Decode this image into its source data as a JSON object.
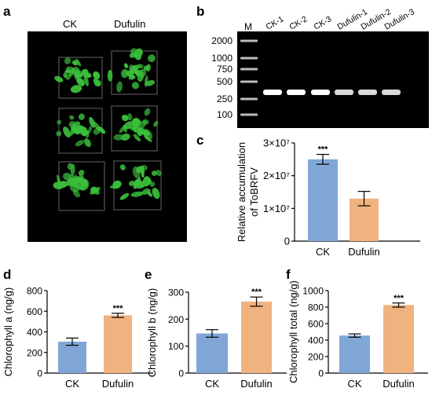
{
  "panels": {
    "a": {
      "letter": "a",
      "labels": [
        "CK",
        "Dufulin"
      ]
    },
    "b": {
      "letter": "b",
      "marker_label": "M",
      "marker_sizes": [
        "2000",
        "1000",
        "750",
        "500",
        "250",
        "100"
      ],
      "lanes": [
        "CK-1",
        "CK-2",
        "CK-3",
        "Dufulin-1",
        "Dufulin-2",
        "Dufulin-3"
      ]
    },
    "c": {
      "letter": "c"
    },
    "d": {
      "letter": "d"
    },
    "e": {
      "letter": "e"
    },
    "f": {
      "letter": "f"
    }
  },
  "colors": {
    "ck": "#7fa6d6",
    "dufulin": "#f0b27f",
    "plant_bg": "#000000",
    "leaf": "#3bbf3b",
    "gel_bg": "#000000"
  },
  "chart_data": [
    {
      "panel": "c",
      "type": "bar",
      "categories": [
        "CK",
        "Dufulin"
      ],
      "values": [
        25000000,
        13000000
      ],
      "errors": [
        1500000,
        2200000
      ],
      "significance": [
        "***",
        ""
      ],
      "ylabel": "Relative accumulation of ToBRFV",
      "ylim": [
        0,
        30000000
      ],
      "yticks": [
        0,
        10000000,
        20000000,
        30000000
      ],
      "ytick_labels": [
        "0",
        "1×10⁷",
        "2×10⁷",
        "3×10⁷"
      ]
    },
    {
      "panel": "d",
      "type": "bar",
      "categories": [
        "CK",
        "Dufulin"
      ],
      "values": [
        305,
        560
      ],
      "errors": [
        35,
        20
      ],
      "significance": [
        "",
        "***"
      ],
      "ylabel": "Chlorophyll a (ng/g)",
      "ylim": [
        0,
        800
      ],
      "yticks": [
        0,
        200,
        400,
        600,
        800
      ],
      "ytick_labels": [
        "0",
        "200",
        "400",
        "600",
        "800"
      ]
    },
    {
      "panel": "e",
      "type": "bar",
      "categories": [
        "CK",
        "Dufulin"
      ],
      "values": [
        147,
        265
      ],
      "errors": [
        14,
        17
      ],
      "significance": [
        "",
        "***"
      ],
      "ylabel": "Chlorophyll b (ng/g)",
      "ylim": [
        0,
        300
      ],
      "yticks": [
        0,
        100,
        200,
        300
      ],
      "ytick_labels": [
        "0",
        "100",
        "200",
        "300"
      ]
    },
    {
      "panel": "f",
      "type": "bar",
      "categories": [
        "CK",
        "Dufulin"
      ],
      "values": [
        455,
        825
      ],
      "errors": [
        20,
        25
      ],
      "significance": [
        "",
        "***"
      ],
      "ylabel": "Chlorophyll total (ng/g)",
      "ylim": [
        0,
        1000
      ],
      "yticks": [
        0,
        200,
        400,
        600,
        800,
        1000
      ],
      "ytick_labels": [
        "0",
        "200",
        "400",
        "600",
        "800",
        "1000"
      ]
    }
  ]
}
